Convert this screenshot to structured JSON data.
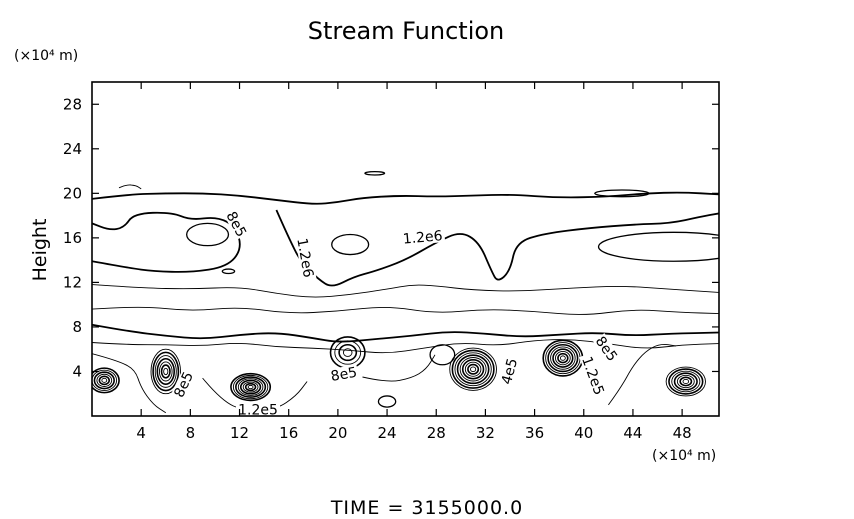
{
  "chart_data": {
    "type": "contour",
    "title": "Stream Function",
    "xlabel": "",
    "ylabel": "Height",
    "x_unit": "(×10⁴ m)",
    "y_unit": "(×10⁴ m)",
    "xlim": [
      0,
      51
    ],
    "ylim": [
      0,
      30
    ],
    "x_ticks": [
      4,
      8,
      12,
      16,
      20,
      24,
      28,
      32,
      36,
      40,
      44,
      48
    ],
    "y_ticks": [
      4,
      8,
      12,
      16,
      20,
      24,
      28
    ],
    "footer": "TIME = 3155000.0",
    "contour_labels": [
      {
        "text": "8e5",
        "x": 11.7,
        "y": 17.2,
        "angle": 62
      },
      {
        "text": "1.2e6",
        "x": 17.3,
        "y": 14.2,
        "angle": 80
      },
      {
        "text": "1.2e6",
        "x": 26.9,
        "y": 16.0,
        "angle": -5
      },
      {
        "text": "8e5",
        "x": 20.5,
        "y": 3.7,
        "angle": -10
      },
      {
        "text": "8e5",
        "x": 7.5,
        "y": 2.8,
        "angle": -65
      },
      {
        "text": "1.2e5",
        "x": 13.5,
        "y": 0.5,
        "angle": 0
      },
      {
        "text": "4e5",
        "x": 34.0,
        "y": 4.0,
        "angle": -75
      },
      {
        "text": "8e5",
        "x": 41.8,
        "y": 6.0,
        "angle": 55
      },
      {
        "text": "1.2e5",
        "x": 40.7,
        "y": 3.6,
        "angle": 70
      }
    ],
    "vortices": [
      {
        "x": 1.0,
        "y": 3.2,
        "rx": 1.2,
        "ry": 1.1,
        "rings": 6
      },
      {
        "x": 6.0,
        "y": 4.0,
        "rx": 1.2,
        "ry": 2.0,
        "rings": 7
      },
      {
        "x": 12.9,
        "y": 2.6,
        "rx": 1.6,
        "ry": 1.2,
        "rings": 8
      },
      {
        "x": 20.8,
        "y": 5.7,
        "rx": 1.4,
        "ry": 1.4,
        "rings": 4
      },
      {
        "x": 31.0,
        "y": 4.2,
        "rx": 1.9,
        "ry": 1.9,
        "rings": 9
      },
      {
        "x": 38.3,
        "y": 5.2,
        "rx": 1.6,
        "ry": 1.6,
        "rings": 8
      },
      {
        "x": 48.3,
        "y": 3.1,
        "rx": 1.6,
        "ry": 1.3,
        "rings": 7
      }
    ],
    "contour_lines": [
      {
        "weight": "thick",
        "points": [
          [
            0,
            19.5
          ],
          [
            3,
            19.9
          ],
          [
            6,
            20.0
          ],
          [
            9,
            20.0
          ],
          [
            12,
            19.8
          ],
          [
            15,
            19.4
          ],
          [
            18,
            19.0
          ],
          [
            20,
            19.2
          ],
          [
            22,
            19.6
          ],
          [
            25,
            19.8
          ],
          [
            28,
            19.7
          ],
          [
            31,
            19.8
          ],
          [
            34,
            19.9
          ],
          [
            38,
            19.6
          ],
          [
            42,
            19.7
          ],
          [
            45,
            20.0
          ],
          [
            48,
            20.1
          ],
          [
            51,
            19.9
          ]
        ]
      },
      {
        "weight": "thick",
        "points": [
          [
            0,
            13.9
          ],
          [
            3,
            13.3
          ],
          [
            5,
            13.0
          ],
          [
            8,
            12.9
          ],
          [
            11,
            13.4
          ],
          [
            12.2,
            15.0
          ],
          [
            11.7,
            17.0
          ],
          [
            10.2,
            17.9
          ],
          [
            8,
            17.6
          ],
          [
            6.5,
            18.3
          ],
          [
            3.4,
            18.2
          ],
          [
            2.6,
            16.9
          ],
          [
            1.4,
            16.7
          ],
          [
            0,
            17.3
          ]
        ]
      },
      {
        "weight": "thick",
        "points": [
          [
            15,
            18.5
          ],
          [
            16,
            16.0
          ],
          [
            17,
            13.8
          ],
          [
            18.4,
            12.3
          ],
          [
            19.5,
            11.5
          ],
          [
            21.3,
            12.5
          ],
          [
            23,
            13.0
          ],
          [
            25.5,
            14.0
          ],
          [
            28,
            15.6
          ],
          [
            30,
            16.6
          ],
          [
            31.5,
            15.6
          ],
          [
            32.5,
            13.0
          ],
          [
            33,
            12.0
          ],
          [
            34,
            13.0
          ],
          [
            34.5,
            15.6
          ],
          [
            36.8,
            16.4
          ],
          [
            40.6,
            16.9
          ],
          [
            44,
            17.2
          ],
          [
            47,
            17.3
          ],
          [
            49.5,
            17.9
          ],
          [
            51,
            18.2
          ]
        ]
      },
      {
        "weight": "thin",
        "points": [
          [
            0,
            11.8
          ],
          [
            4,
            11.5
          ],
          [
            8,
            11.4
          ],
          [
            12,
            11.6
          ],
          [
            15,
            11.0
          ],
          [
            18,
            10.6
          ],
          [
            21,
            10.9
          ],
          [
            24,
            11.4
          ],
          [
            26,
            11.8
          ],
          [
            28,
            11.7
          ],
          [
            31,
            11.3
          ],
          [
            35,
            11.2
          ],
          [
            39,
            11.5
          ],
          [
            43,
            11.7
          ],
          [
            47,
            11.4
          ],
          [
            51,
            11.1
          ]
        ]
      },
      {
        "weight": "thin",
        "points": [
          [
            0,
            9.6
          ],
          [
            4,
            9.9
          ],
          [
            8,
            9.4
          ],
          [
            12,
            9.8
          ],
          [
            16,
            9.2
          ],
          [
            20,
            9.4
          ],
          [
            24,
            9.9
          ],
          [
            28,
            9.2
          ],
          [
            32,
            9.6
          ],
          [
            36,
            9.4
          ],
          [
            40,
            9.0
          ],
          [
            44,
            9.6
          ],
          [
            48,
            9.3
          ],
          [
            51,
            9.2
          ]
        ]
      },
      {
        "weight": "thick",
        "points": [
          [
            0,
            8.2
          ],
          [
            3,
            7.6
          ],
          [
            6,
            7.2
          ],
          [
            9,
            6.9
          ],
          [
            12,
            7.3
          ],
          [
            15,
            7.5
          ],
          [
            18,
            7.0
          ],
          [
            20,
            6.6
          ],
          [
            23,
            6.9
          ],
          [
            26,
            7.2
          ],
          [
            29,
            7.6
          ],
          [
            32,
            7.4
          ],
          [
            35,
            7.1
          ],
          [
            38,
            7.3
          ],
          [
            41,
            7.5
          ],
          [
            44,
            7.2
          ],
          [
            47,
            7.4
          ],
          [
            51,
            7.5
          ]
        ]
      },
      {
        "weight": "thin",
        "points": [
          [
            0,
            5.6
          ],
          [
            2,
            5.0
          ],
          [
            3.5,
            4.2
          ],
          [
            4,
            2.5
          ],
          [
            5,
            1.0
          ],
          [
            6,
            0.3
          ]
        ]
      },
      {
        "weight": "thin",
        "points": [
          [
            22,
            3.5
          ],
          [
            24,
            3.0
          ],
          [
            26,
            3.4
          ],
          [
            27.2,
            4.2
          ],
          [
            27.9,
            5.5
          ]
        ]
      },
      {
        "weight": "thin",
        "points": [
          [
            42,
            1.0
          ],
          [
            43,
            2.5
          ],
          [
            44,
            4.5
          ],
          [
            45,
            5.8
          ],
          [
            46.2,
            6.5
          ],
          [
            47.5,
            6.3
          ]
        ]
      },
      {
        "weight": "thin",
        "points": [
          [
            0,
            6.6
          ],
          [
            3,
            6.4
          ],
          [
            6,
            6.4
          ],
          [
            9,
            6.3
          ],
          [
            12,
            6.6
          ],
          [
            15,
            6.2
          ],
          [
            18,
            6.1
          ],
          [
            21,
            5.9
          ],
          [
            24,
            5.6
          ],
          [
            27,
            6.1
          ],
          [
            30,
            6.6
          ],
          [
            33,
            6.3
          ],
          [
            36,
            6.8
          ],
          [
            39,
            6.9
          ],
          [
            42,
            6.5
          ],
          [
            45,
            6.0
          ],
          [
            48,
            6.4
          ],
          [
            51,
            6.5
          ]
        ]
      },
      {
        "weight": "thin",
        "points": [
          [
            9,
            3.4
          ],
          [
            10.5,
            1.4
          ],
          [
            12.5,
            0.4
          ],
          [
            15,
            0.6
          ],
          [
            16.6,
            1.8
          ],
          [
            17.5,
            3.1
          ]
        ]
      },
      {
        "weight": "thin",
        "points": [
          [
            2.2,
            20.5
          ],
          [
            2.8,
            20.8
          ],
          [
            3.6,
            20.7
          ],
          [
            4.0,
            20.4
          ]
        ]
      }
    ],
    "islands": [
      {
        "x": 9.4,
        "y": 16.3,
        "rx": 1.7,
        "ry": 1.0
      },
      {
        "x": 21.0,
        "y": 15.4,
        "rx": 1.5,
        "ry": 0.9
      },
      {
        "x": 47.3,
        "y": 15.2,
        "rx": 6.1,
        "ry": 1.3
      },
      {
        "x": 11.1,
        "y": 13.0,
        "rx": 0.5,
        "ry": 0.2
      },
      {
        "x": 28.5,
        "y": 5.5,
        "rx": 1.0,
        "ry": 0.9
      },
      {
        "x": 24.0,
        "y": 1.3,
        "rx": 0.7,
        "ry": 0.5
      },
      {
        "x": 43.1,
        "y": 20.0,
        "rx": 2.2,
        "ry": 0.3
      },
      {
        "x": 23.0,
        "y": 21.8,
        "rx": 0.8,
        "ry": 0.15
      }
    ]
  }
}
